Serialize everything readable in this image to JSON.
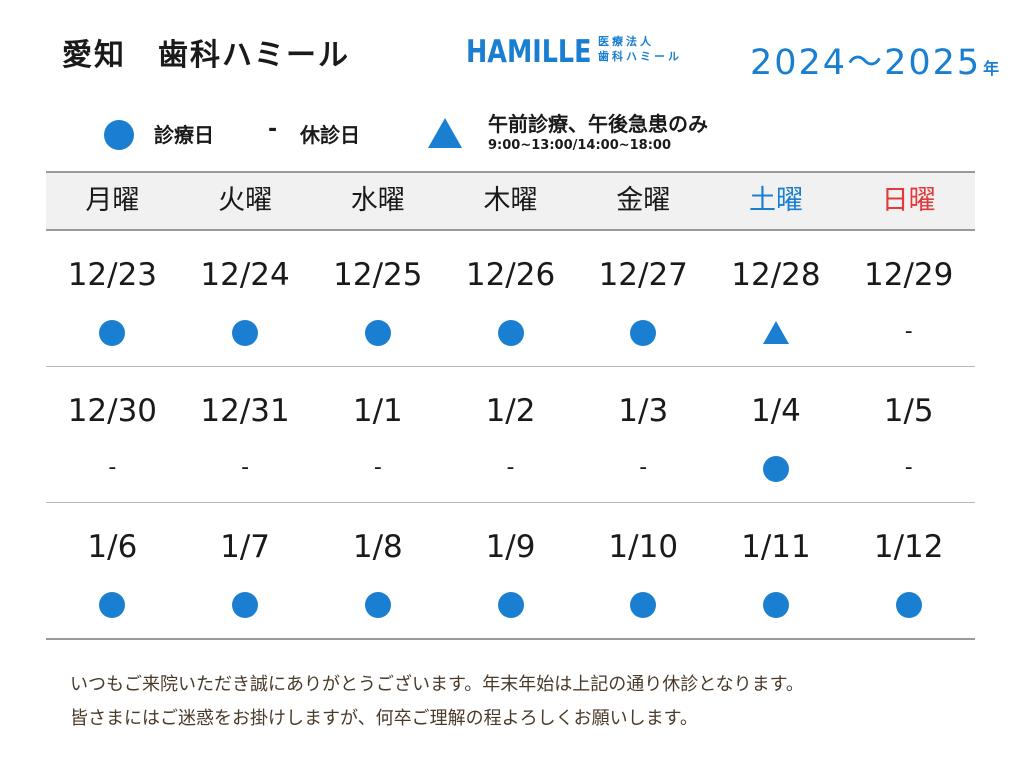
{
  "header": {
    "title": "愛知　歯科ハミール",
    "logo_word": "HAMILLE",
    "logo_sub1": "医療法人",
    "logo_sub2": "歯科ハミール",
    "year_range": "2024～2025",
    "year_suffix": "年",
    "brand_color": "#1a7fd1"
  },
  "legend": {
    "open_symbol": "circle",
    "open_label": "診療日",
    "closed_symbol": "-",
    "closed_label": "休診日",
    "partial_symbol": "triangle",
    "partial_label": "午前診療、午後急患のみ",
    "hours": "9:00~13:00/14:00~18:00"
  },
  "calendar": {
    "weekdays": [
      "月曜",
      "火曜",
      "水曜",
      "木曜",
      "金曜",
      "土曜",
      "日曜"
    ],
    "weeks": [
      [
        {
          "date": "12/23",
          "status": "open"
        },
        {
          "date": "12/24",
          "status": "open"
        },
        {
          "date": "12/25",
          "status": "open"
        },
        {
          "date": "12/26",
          "status": "open"
        },
        {
          "date": "12/27",
          "status": "open"
        },
        {
          "date": "12/28",
          "status": "partial"
        },
        {
          "date": "12/29",
          "status": "closed"
        }
      ],
      [
        {
          "date": "12/30",
          "status": "closed"
        },
        {
          "date": "12/31",
          "status": "closed"
        },
        {
          "date": "1/1",
          "status": "closed"
        },
        {
          "date": "1/2",
          "status": "closed"
        },
        {
          "date": "1/3",
          "status": "closed"
        },
        {
          "date": "1/4",
          "status": "open"
        },
        {
          "date": "1/5",
          "status": "closed"
        }
      ],
      [
        {
          "date": "1/6",
          "status": "open"
        },
        {
          "date": "1/7",
          "status": "open"
        },
        {
          "date": "1/8",
          "status": "open"
        },
        {
          "date": "1/9",
          "status": "open"
        },
        {
          "date": "1/10",
          "status": "open"
        },
        {
          "date": "1/11",
          "status": "open"
        },
        {
          "date": "1/12",
          "status": "open"
        }
      ]
    ],
    "closed_mark": "-",
    "saturday_color": "#1a7fd1",
    "sunday_color": "#e03a3a"
  },
  "notice": {
    "line1": "いつもご来院いただき誠にありがとうございます。年末年始は上記の通り休診となります。",
    "line2": "皆さまにはご迷惑をお掛けしますが、何卒ご理解の程よろしくお願いします。"
  }
}
